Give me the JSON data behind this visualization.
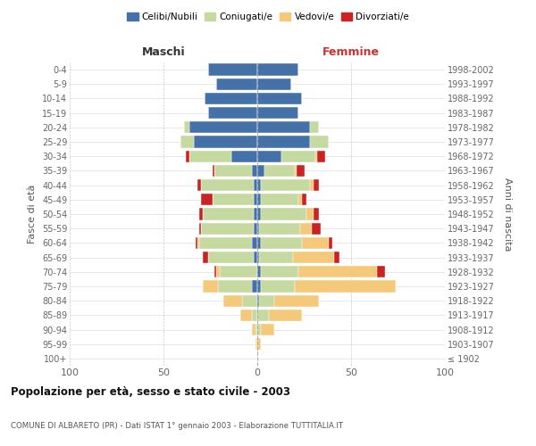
{
  "age_groups": [
    "100+",
    "95-99",
    "90-94",
    "85-89",
    "80-84",
    "75-79",
    "70-74",
    "65-69",
    "60-64",
    "55-59",
    "50-54",
    "45-49",
    "40-44",
    "35-39",
    "30-34",
    "25-29",
    "20-24",
    "15-19",
    "10-14",
    "5-9",
    "0-4"
  ],
  "birth_years": [
    "≤ 1902",
    "1903-1907",
    "1908-1912",
    "1913-1917",
    "1918-1922",
    "1923-1927",
    "1928-1932",
    "1933-1937",
    "1938-1942",
    "1943-1947",
    "1948-1952",
    "1953-1957",
    "1958-1962",
    "1963-1967",
    "1968-1972",
    "1973-1977",
    "1978-1982",
    "1983-1987",
    "1988-1992",
    "1993-1997",
    "1998-2002"
  ],
  "male_celibi": [
    0,
    0,
    0,
    0,
    0,
    3,
    0,
    2,
    3,
    2,
    2,
    2,
    2,
    3,
    14,
    34,
    36,
    26,
    28,
    22,
    26
  ],
  "male_coniugati": [
    0,
    0,
    1,
    3,
    8,
    18,
    20,
    24,
    28,
    28,
    27,
    22,
    28,
    20,
    22,
    7,
    3,
    0,
    0,
    0,
    0
  ],
  "male_vedovi": [
    0,
    1,
    2,
    6,
    10,
    8,
    2,
    0,
    1,
    0,
    0,
    0,
    0,
    0,
    0,
    0,
    0,
    0,
    0,
    0,
    0
  ],
  "male_divorziati": [
    0,
    0,
    0,
    0,
    0,
    0,
    1,
    3,
    1,
    1,
    2,
    6,
    2,
    1,
    2,
    0,
    0,
    0,
    0,
    0,
    0
  ],
  "female_nubili": [
    0,
    0,
    0,
    0,
    1,
    2,
    2,
    1,
    2,
    1,
    2,
    2,
    2,
    4,
    13,
    28,
    28,
    22,
    24,
    18,
    22
  ],
  "female_coniugate": [
    0,
    0,
    2,
    6,
    8,
    18,
    20,
    18,
    22,
    22,
    24,
    20,
    26,
    16,
    18,
    10,
    5,
    0,
    0,
    0,
    0
  ],
  "female_vedove": [
    0,
    2,
    7,
    18,
    24,
    54,
    42,
    22,
    14,
    6,
    4,
    2,
    2,
    1,
    1,
    0,
    0,
    0,
    0,
    0,
    0
  ],
  "female_divorziate": [
    0,
    0,
    0,
    0,
    0,
    0,
    4,
    3,
    2,
    5,
    3,
    2,
    3,
    4,
    4,
    0,
    0,
    0,
    0,
    0,
    0
  ],
  "color_celibi": "#4472a8",
  "color_coniugati": "#c5d9a0",
  "color_vedovi": "#f5c97a",
  "color_divorziati": "#cc2222",
  "xlim": 100,
  "title": "Popolazione per età, sesso e stato civile - 2003",
  "subtitle": "COMUNE DI ALBARETO (PR) - Dati ISTAT 1° gennaio 2003 - Elaborazione TUTTITALIA.IT",
  "ylabel_left": "Fasce di età",
  "ylabel_right": "Anni di nascita",
  "legend_labels": [
    "Celibi/Nubili",
    "Coniugati/e",
    "Vedovi/e",
    "Divorziati/e"
  ],
  "maschi_label": "Maschi",
  "femmine_label": "Femmine"
}
